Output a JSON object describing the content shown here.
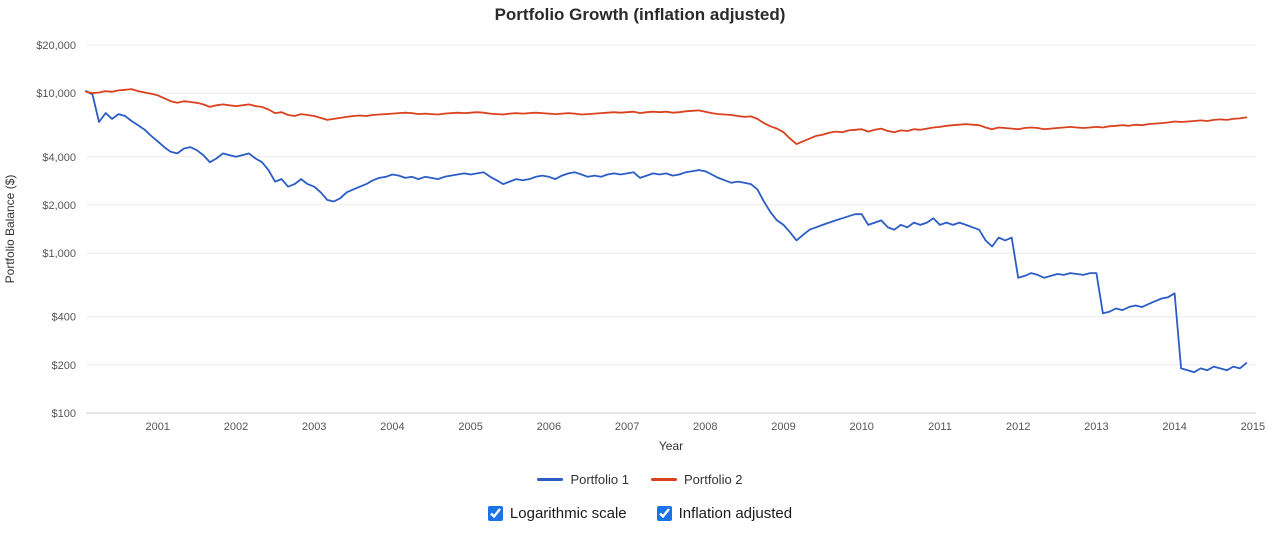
{
  "title": "Portfolio Growth (inflation adjusted)",
  "colors": {
    "portfolio1": "#2c5cc5",
    "portfolio2": "#d8421f",
    "checkbox_accent": "#1a73e8",
    "gridline": "#ececec",
    "axis_line": "#c8c8c8"
  },
  "chart_data": {
    "type": "line",
    "title": "Portfolio Growth (inflation adjusted)",
    "xlabel": "Year",
    "ylabel": "Portfolio Balance ($)",
    "y_scale": "log",
    "grid": "horizontal-only",
    "legend_position": "bottom",
    "xlim": [
      2000.083,
      2015.04
    ],
    "ylim": [
      100,
      20000
    ],
    "x_ticks": [
      2001,
      2002,
      2003,
      2004,
      2005,
      2006,
      2007,
      2008,
      2009,
      2010,
      2011,
      2012,
      2013,
      2014,
      2015
    ],
    "y_ticks": [
      {
        "value": 20000,
        "label": "$20,000"
      },
      {
        "value": 10000,
        "label": "$10,000"
      },
      {
        "value": 4000,
        "label": "$4,000"
      },
      {
        "value": 2000,
        "label": "$2,000"
      },
      {
        "value": 1000,
        "label": "$1,000"
      },
      {
        "value": 400,
        "label": "$400"
      },
      {
        "value": 200,
        "label": "$200"
      },
      {
        "value": 100,
        "label": "$100"
      }
    ],
    "x_start_year_month": "2000-02",
    "x_step_months": 1,
    "series": [
      {
        "name": "Portfolio 1",
        "color": "#2c5cc5",
        "values": [
          10300,
          9800,
          6600,
          7500,
          6900,
          7400,
          7200,
          6700,
          6300,
          5900,
          5400,
          5000,
          4600,
          4300,
          4200,
          4500,
          4600,
          4400,
          4100,
          3700,
          3900,
          4200,
          4100,
          4000,
          4100,
          4200,
          3900,
          3700,
          3300,
          2800,
          2900,
          2600,
          2700,
          2900,
          2700,
          2600,
          2400,
          2150,
          2100,
          2200,
          2400,
          2500,
          2600,
          2700,
          2850,
          2950,
          3000,
          3100,
          3050,
          2950,
          3000,
          2900,
          3000,
          2950,
          2900,
          3000,
          3050,
          3100,
          3150,
          3100,
          3150,
          3200,
          3000,
          2850,
          2700,
          2800,
          2900,
          2850,
          2900,
          3000,
          3050,
          3000,
          2900,
          3050,
          3150,
          3200,
          3100,
          3000,
          3050,
          3000,
          3100,
          3150,
          3100,
          3150,
          3200,
          2950,
          3050,
          3150,
          3100,
          3150,
          3050,
          3100,
          3200,
          3250,
          3300,
          3250,
          3100,
          2950,
          2850,
          2750,
          2800,
          2750,
          2700,
          2500,
          2100,
          1800,
          1600,
          1500,
          1350,
          1200,
          1300,
          1400,
          1450,
          1500,
          1550,
          1600,
          1650,
          1700,
          1750,
          1750,
          1500,
          1550,
          1600,
          1450,
          1400,
          1500,
          1450,
          1550,
          1500,
          1550,
          1650,
          1500,
          1550,
          1500,
          1550,
          1500,
          1450,
          1400,
          1200,
          1100,
          1250,
          1200,
          1250,
          700,
          720,
          750,
          730,
          700,
          720,
          740,
          730,
          750,
          740,
          730,
          750,
          750,
          420,
          430,
          450,
          440,
          460,
          470,
          460,
          480,
          500,
          520,
          530,
          560,
          190,
          185,
          180,
          190,
          185,
          195,
          190,
          185,
          195,
          190,
          205
        ]
      },
      {
        "name": "Portfolio 2",
        "color": "#d8421f",
        "values": [
          10200,
          10000,
          10100,
          10300,
          10200,
          10400,
          10500,
          10600,
          10300,
          10100,
          9900,
          9700,
          9300,
          8900,
          8700,
          8900,
          8800,
          8700,
          8500,
          8200,
          8400,
          8500,
          8400,
          8300,
          8400,
          8500,
          8300,
          8200,
          7900,
          7500,
          7600,
          7300,
          7200,
          7400,
          7300,
          7200,
          7000,
          6800,
          6900,
          7000,
          7100,
          7200,
          7250,
          7200,
          7300,
          7350,
          7400,
          7450,
          7500,
          7550,
          7500,
          7400,
          7450,
          7400,
          7350,
          7450,
          7500,
          7550,
          7500,
          7550,
          7600,
          7550,
          7450,
          7400,
          7350,
          7450,
          7500,
          7450,
          7500,
          7550,
          7500,
          7450,
          7400,
          7450,
          7500,
          7450,
          7350,
          7400,
          7450,
          7500,
          7550,
          7600,
          7550,
          7600,
          7650,
          7500,
          7600,
          7650,
          7600,
          7650,
          7550,
          7600,
          7700,
          7750,
          7800,
          7650,
          7500,
          7400,
          7350,
          7300,
          7200,
          7100,
          7150,
          6900,
          6500,
          6200,
          6000,
          5700,
          5200,
          4800,
          5000,
          5200,
          5400,
          5500,
          5650,
          5750,
          5700,
          5850,
          5900,
          5950,
          5750,
          5900,
          6000,
          5800,
          5700,
          5850,
          5800,
          5950,
          5900,
          6000,
          6100,
          6150,
          6250,
          6300,
          6350,
          6400,
          6350,
          6300,
          6100,
          5950,
          6100,
          6050,
          6000,
          5950,
          6050,
          6100,
          6050,
          5950,
          6000,
          6050,
          6100,
          6150,
          6100,
          6050,
          6100,
          6150,
          6100,
          6200,
          6250,
          6300,
          6250,
          6350,
          6300,
          6400,
          6450,
          6500,
          6550,
          6650,
          6600,
          6650,
          6700,
          6750,
          6700,
          6800,
          6850,
          6800,
          6900,
          6950,
          7050
        ]
      }
    ]
  },
  "legend": {
    "items": [
      {
        "label": "Portfolio 1"
      },
      {
        "label": "Portfolio 2"
      }
    ]
  },
  "controls": {
    "checkboxes": [
      {
        "label": "Logarithmic scale",
        "checked": true
      },
      {
        "label": "Inflation adjusted",
        "checked": true
      }
    ]
  }
}
